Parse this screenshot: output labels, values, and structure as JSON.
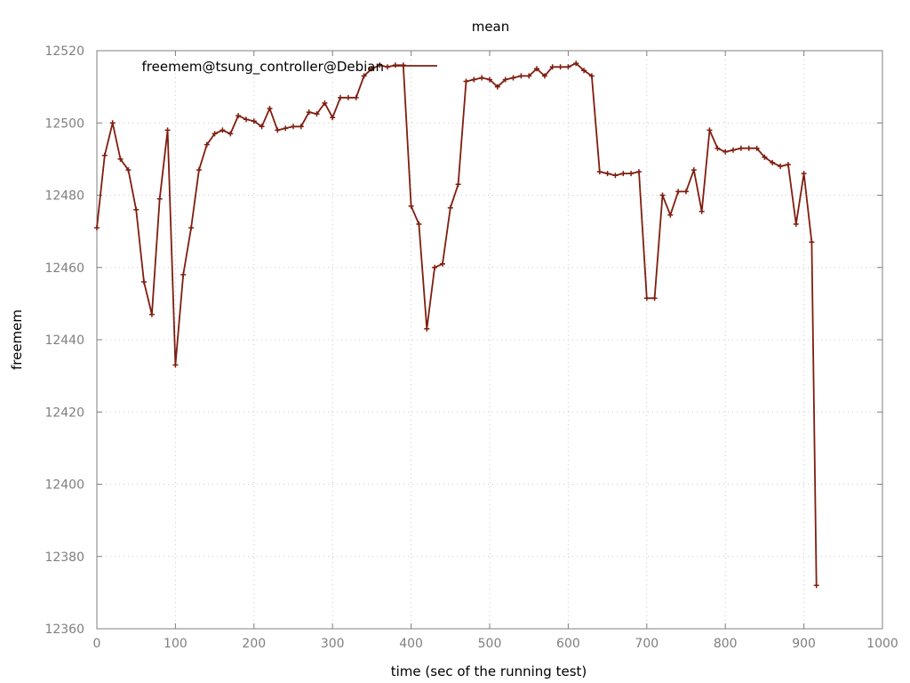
{
  "chart_data": {
    "type": "line",
    "title": "mean",
    "xlabel": "time (sec of the running test)",
    "ylabel": "freemem",
    "xlim": [
      0,
      1000
    ],
    "ylim": [
      12360,
      12520
    ],
    "xticks": [
      0,
      100,
      200,
      300,
      400,
      500,
      600,
      700,
      800,
      900,
      1000
    ],
    "yticks": [
      12360,
      12380,
      12400,
      12420,
      12440,
      12460,
      12480,
      12500,
      12520
    ],
    "grid": true,
    "legend_position": "top-left",
    "series": [
      {
        "name": "freemem@tsung_controller@Debian",
        "color": "#7f1d0f",
        "x": [
          0,
          10,
          20,
          30,
          40,
          50,
          60,
          70,
          80,
          90,
          100,
          110,
          120,
          130,
          140,
          150,
          160,
          170,
          180,
          190,
          200,
          210,
          220,
          230,
          240,
          250,
          260,
          270,
          280,
          290,
          300,
          310,
          320,
          330,
          340,
          350,
          360,
          370,
          380,
          390,
          400,
          410,
          420,
          430,
          440,
          450,
          460,
          470,
          480,
          490,
          500,
          510,
          520,
          530,
          540,
          550,
          560,
          570,
          580,
          590,
          600,
          610,
          620,
          630,
          640,
          650,
          660,
          670,
          680,
          690,
          700,
          710,
          720,
          730,
          740,
          750,
          760,
          770,
          780,
          790,
          800,
          810,
          820,
          830,
          840,
          850,
          860,
          870,
          880,
          890,
          900,
          910,
          916
        ],
        "y": [
          12471,
          12491,
          12500,
          12490,
          12487,
          12476,
          12456,
          12447,
          12479,
          12498,
          12433,
          12458,
          12471,
          12487,
          12494,
          12497,
          12498,
          12497,
          12502,
          12501,
          12500.5,
          12499,
          12504,
          12498,
          12498.5,
          12499,
          12499,
          12503,
          12502.5,
          12505.5,
          12501.5,
          12507,
          12507,
          12507,
          12513,
          12515,
          12516,
          12515.5,
          12516,
          12516,
          12477,
          12472,
          12443,
          12460,
          12461,
          12476.5,
          12483,
          12511.5,
          12512,
          12512.5,
          12512,
          12510,
          12512,
          12512.5,
          12513,
          12513,
          12515,
          12513,
          12515.5,
          12515.5,
          12515.5,
          12516.5,
          12514.5,
          12513,
          12486.5,
          12486,
          12485.5,
          12486,
          12486,
          12486.5,
          12451.5,
          12451.5,
          12480,
          12474.5,
          12481,
          12481,
          12487,
          12475.5,
          12498,
          12493,
          12492,
          12492.5,
          12493,
          12493,
          12493,
          12490.5,
          12489,
          12488,
          12488.5,
          12472,
          12486,
          12467,
          12372
        ]
      }
    ]
  }
}
